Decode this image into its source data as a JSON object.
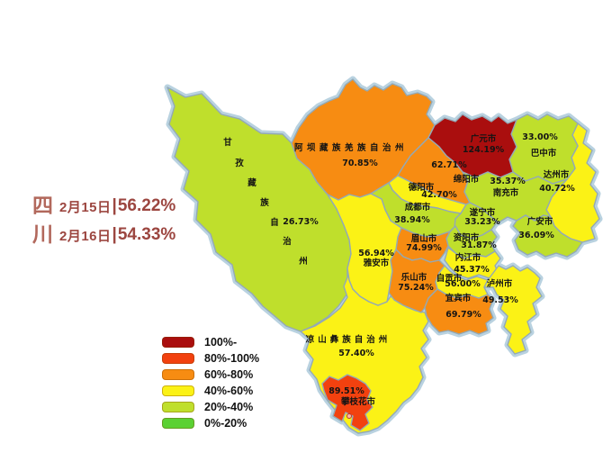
{
  "title": {
    "province_chars": [
      "四",
      "川"
    ],
    "lines": [
      {
        "date": "2月15日",
        "sep": "|",
        "value": "56.22%"
      },
      {
        "date": "2月16日",
        "sep": "|",
        "value": "54.33%"
      }
    ],
    "text_color": "#9c4640"
  },
  "legend": {
    "items": [
      {
        "label": "100%-",
        "color": "#aa0e0e"
      },
      {
        "label": "80%-100%",
        "color": "#f2410f"
      },
      {
        "label": "60%-80%",
        "color": "#f78c12"
      },
      {
        "label": "40%-60%",
        "color": "#fbf216"
      },
      {
        "label": "20%-40%",
        "color": "#bfdf2c"
      },
      {
        "label": "0%-20%",
        "color": "#5bd133"
      }
    ]
  },
  "map": {
    "regions": [
      {
        "id": "garze",
        "name": "甘孜藏族自治州",
        "value": "26.73%",
        "band": "20%-40%",
        "color": "#bfdf2c"
      },
      {
        "id": "aba",
        "name": "阿坝藏族羌族自治州",
        "value": "70.85%",
        "band": "60%-80%",
        "color": "#f78c12"
      },
      {
        "id": "liangshan",
        "name": "凉山彝族自治州",
        "value": "57.40%",
        "band": "40%-60%",
        "color": "#fbf216"
      },
      {
        "id": "dazhou",
        "name": "达州市",
        "value": "40.72%",
        "band": "40%-60%",
        "color": "#fbf216"
      },
      {
        "id": "bazhong",
        "name": "巴中市",
        "value": "33.00%",
        "band": "20%-40%",
        "color": "#bfdf2c"
      },
      {
        "id": "guangyuan",
        "name": "广元市",
        "value": "124.19%",
        "band": "100%-",
        "color": "#aa0e0e"
      },
      {
        "id": "mianyang",
        "name": "绵阳市",
        "value": "62.71%",
        "band": "60%-80%",
        "color": "#f78c12"
      },
      {
        "id": "nanchong",
        "name": "南充市",
        "value": "35.37%",
        "band": "20%-40%",
        "color": "#bfdf2c"
      },
      {
        "id": "guang_an",
        "name": "广安市",
        "value": "36.09%",
        "band": "20%-40%",
        "color": "#bfdf2c"
      },
      {
        "id": "deyang",
        "name": "德阳市",
        "value": "42.70%",
        "band": "40%-60%",
        "color": "#fbf216"
      },
      {
        "id": "chengdu",
        "name": "成都市",
        "value": "38.94%",
        "band": "20%-40%",
        "color": "#bfdf2c"
      },
      {
        "id": "suining",
        "name": "遂宁市",
        "value": "33.23%",
        "band": "20%-40%",
        "color": "#bfdf2c"
      },
      {
        "id": "ziyang",
        "name": "资阳市",
        "value": "31.87%",
        "band": "20%-40%",
        "color": "#bfdf2c"
      },
      {
        "id": "meishan",
        "name": "眉山市",
        "value": "74.99%",
        "band": "60%-80%",
        "color": "#f78c12"
      },
      {
        "id": "neijiang",
        "name": "内江市",
        "value": "45.37%",
        "band": "40%-60%",
        "color": "#fbf216"
      },
      {
        "id": "ya_an",
        "name": "雅安市",
        "value": "56.94%",
        "band": "40%-60%",
        "color": "#fbf216"
      },
      {
        "id": "leshan",
        "name": "乐山市",
        "value": "75.24%",
        "band": "60%-80%",
        "color": "#f78c12"
      },
      {
        "id": "zigong",
        "name": "自贡市",
        "value": "56.00%",
        "band": "40%-60%",
        "color": "#fbf216"
      },
      {
        "id": "luzhou",
        "name": "泸州市",
        "value": "49.53%",
        "band": "40%-60%",
        "color": "#fbf216"
      },
      {
        "id": "yibin",
        "name": "宜宾市",
        "value": "69.79%",
        "band": "60%-80%",
        "color": "#f78c12"
      },
      {
        "id": "panzhihua",
        "name": "攀枝花市",
        "value": "89.51%",
        "band": "80%-100%",
        "color": "#f2410f"
      }
    ]
  }
}
